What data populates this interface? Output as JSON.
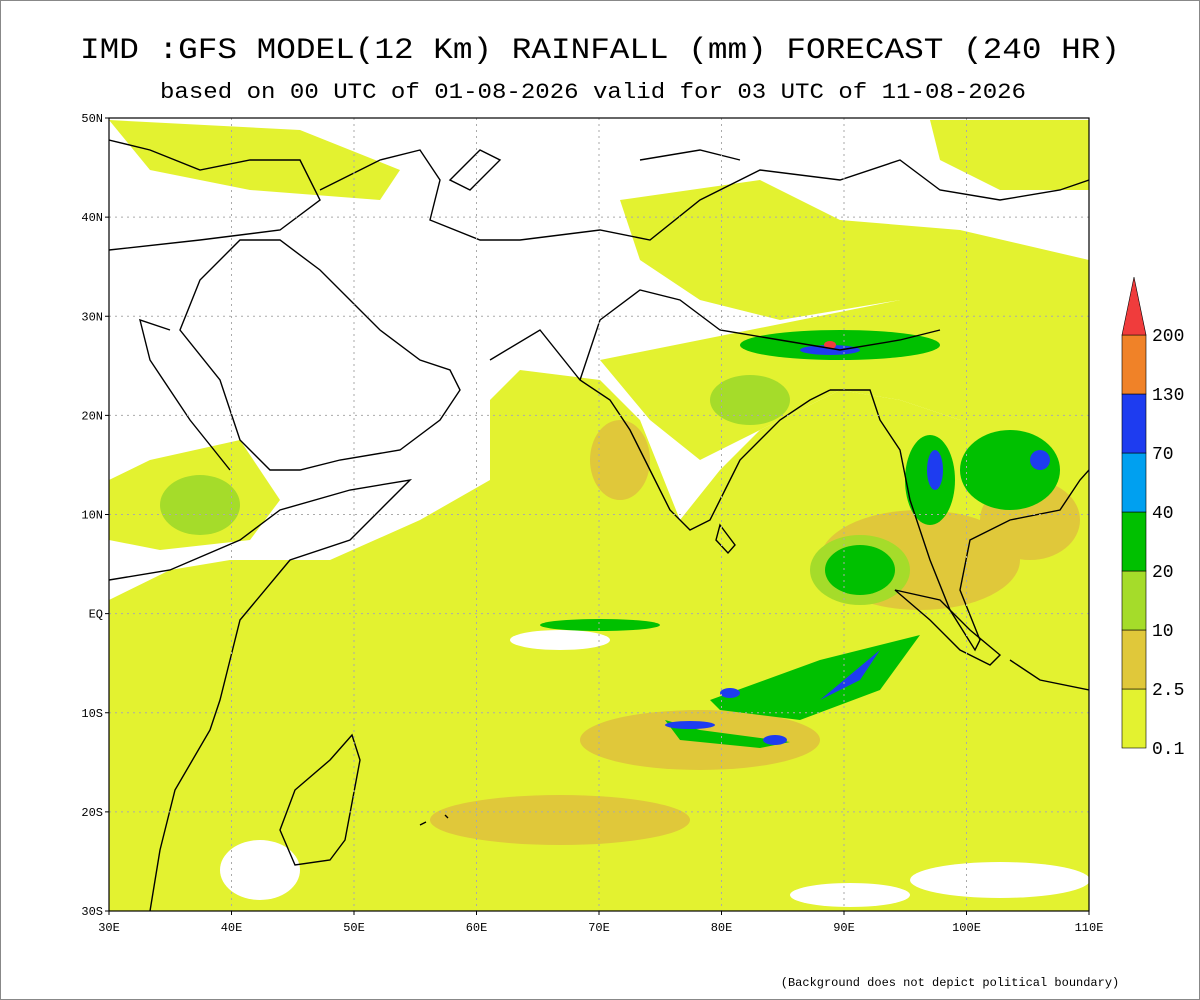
{
  "header": {
    "title": "IMD :GFS MODEL(12 Km) RAINFALL (mm) FORECAST (240 HR)",
    "subtitle": "based on 00 UTC of 01-08-2026 valid for 03 UTC of 11-08-2026"
  },
  "map": {
    "lat_ticks": [
      "50N",
      "40N",
      "30N",
      "20N",
      "10N",
      "EQ",
      "10S",
      "20S",
      "30S"
    ],
    "lon_ticks": [
      "30E",
      "40E",
      "50E",
      "60E",
      "70E",
      "80E",
      "90E",
      "100E",
      "110E"
    ]
  },
  "colorbar": {
    "levels": [
      0.1,
      2.5,
      10,
      20,
      40,
      70,
      130,
      200
    ],
    "colors": [
      "#e3f230",
      "#e0c83a",
      "#a5dc2a",
      "#00c000",
      "#00a0f0",
      "#1e3cf0",
      "#f08228"
    ],
    "over_color": "#f03c3c"
  },
  "footnote": "(Background does not depict political boundary)"
}
